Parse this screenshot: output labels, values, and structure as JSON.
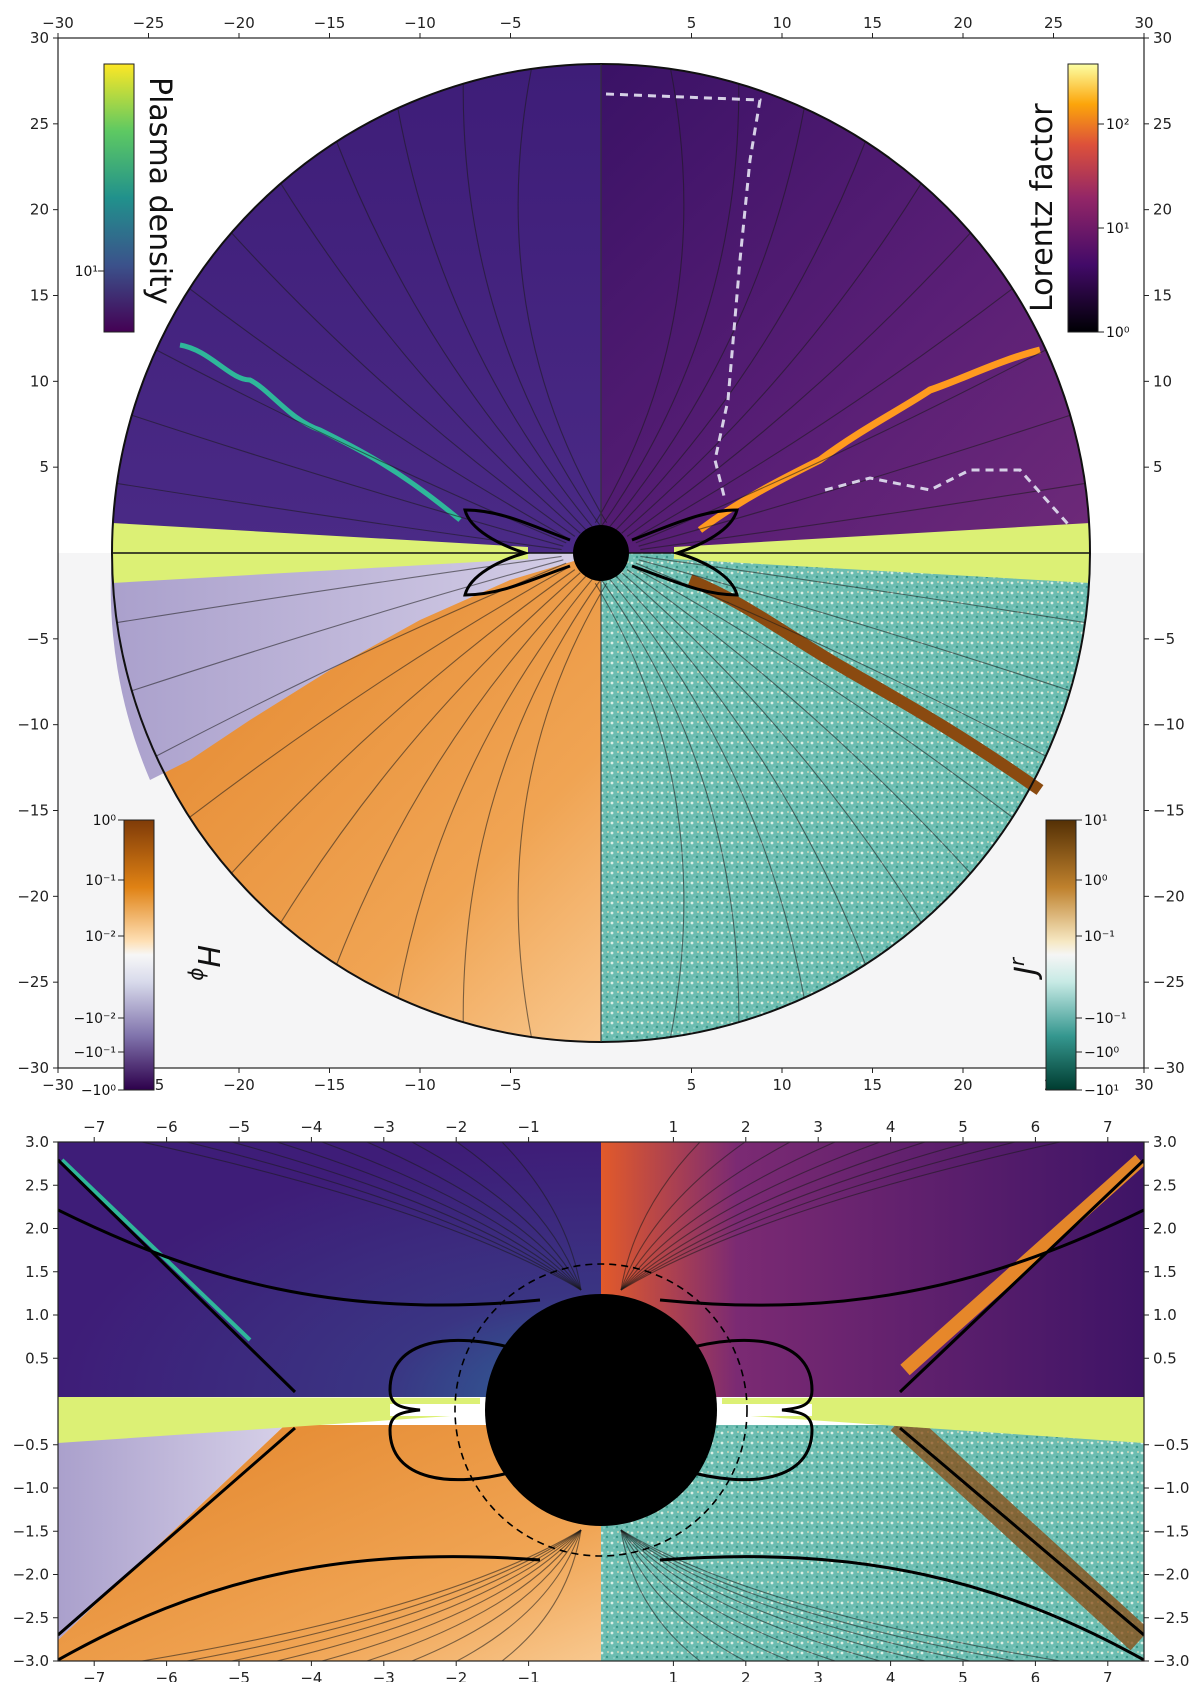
{
  "chart_data": [
    {
      "type": "heatmap",
      "panel": "top",
      "xlim": [
        -30,
        30
      ],
      "ylim": [
        -30,
        30
      ],
      "xticks": [
        -30,
        -25,
        -20,
        -15,
        -10,
        -5,
        5,
        10,
        15,
        20,
        25,
        30
      ],
      "yticks": [
        -30,
        -25,
        -20,
        -15,
        -10,
        -5,
        5,
        10,
        15,
        20,
        25,
        30
      ],
      "outer_radius": 27,
      "quadrants": {
        "upper_left": "Plasma density",
        "upper_right": "Lorentz factor",
        "lower_left": "H_phi",
        "lower_right": "J^r"
      },
      "colorbars": [
        {
          "label": "Plasma density",
          "ticks": [
            "10¹"
          ],
          "colormap": "viridis",
          "placement": "upper-left"
        },
        {
          "label": "Lorentz factor",
          "ticks": [
            "10²",
            "10¹",
            "10⁰"
          ],
          "colormap": "inferno",
          "placement": "upper-right"
        },
        {
          "label_base": "H",
          "label_sub": "ϕ",
          "ticks": [
            "10⁰",
            "10⁻¹",
            "10⁻²",
            "−10⁻²",
            "−10⁻¹",
            "−10⁰"
          ],
          "colormap": "PuOr",
          "placement": "lower-left"
        },
        {
          "label_base": "J",
          "label_sup": "r",
          "ticks": [
            "10¹",
            "10⁰",
            "10⁻¹",
            "−10⁻¹",
            "−10⁰",
            "−10¹"
          ],
          "colormap": "BrBG",
          "placement": "lower-right"
        }
      ]
    },
    {
      "type": "heatmap",
      "panel": "bottom",
      "xlim": [
        -7.5,
        7.5
      ],
      "ylim": [
        -3,
        3
      ],
      "xticks": [
        -7,
        -6,
        -5,
        -4,
        -3,
        -2,
        -1,
        1,
        2,
        3,
        4,
        5,
        6,
        7
      ],
      "yticks": [
        3.0,
        2.5,
        2.0,
        1.5,
        1.0,
        0.5,
        -0.5,
        -1.0,
        -1.5,
        -2.0,
        -2.5,
        -3.0
      ]
    }
  ],
  "colors": {
    "plasma": "#3f1f7a",
    "lorentz": "#4a1a6a",
    "hphi_neg": "#b7afd3",
    "hphi_pos": "#e88b2b",
    "jr": "#73c2b6",
    "disk": "#dcf075",
    "current_sheet_left": "#2fb79a",
    "current_sheet_right": "#ff9a1f",
    "current_sheet_lower": "#8a4a10"
  }
}
